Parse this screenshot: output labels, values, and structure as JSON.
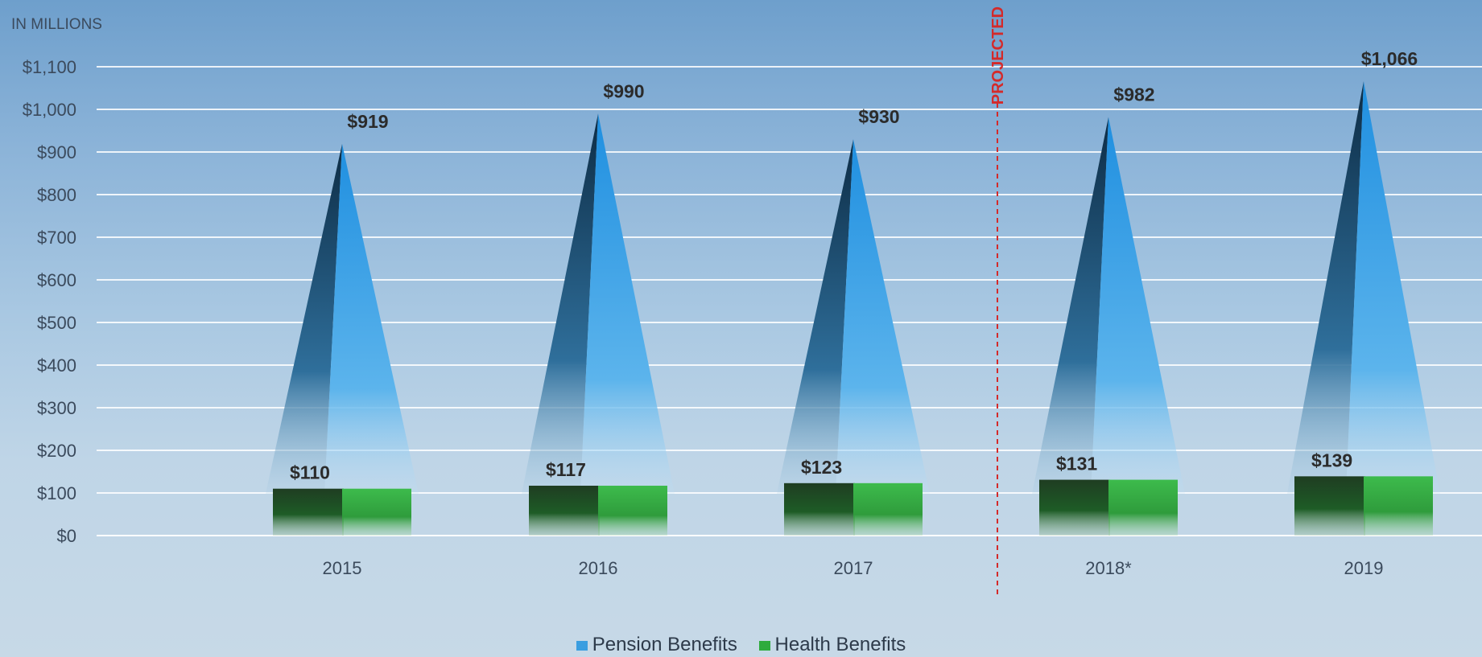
{
  "chart_data": {
    "type": "bar",
    "unit_label": "IN MILLIONS",
    "categories": [
      "2015",
      "2016",
      "2017",
      "2018*",
      "2019"
    ],
    "series": [
      {
        "name": "Pension Benefits",
        "color": "#3a9ee0",
        "values": [
          919,
          990,
          930,
          982,
          1066
        ],
        "value_labels": [
          "$919",
          "$990",
          "$930",
          "$982",
          "$1,066"
        ]
      },
      {
        "name": "Health Benefits",
        "color": "#2eab3e",
        "values": [
          110,
          117,
          123,
          131,
          139
        ],
        "value_labels": [
          "$110",
          "$117",
          "$123",
          "$131",
          "$139"
        ]
      }
    ],
    "y_ticks": [
      0,
      100,
      200,
      300,
      400,
      500,
      600,
      700,
      800,
      900,
      1000,
      1100
    ],
    "y_tick_labels": [
      "$0",
      "$100",
      "$200",
      "$300",
      "$400",
      "$500",
      "$600",
      "$700",
      "$800",
      "$900",
      "$1,000",
      "$1,100"
    ],
    "ylim": [
      0,
      1100
    ],
    "grid": true,
    "legend_position": "bottom-center",
    "annotation": {
      "text": "PROJECTED",
      "color": "#d42a2a",
      "placed_before_category": "2018*"
    }
  }
}
